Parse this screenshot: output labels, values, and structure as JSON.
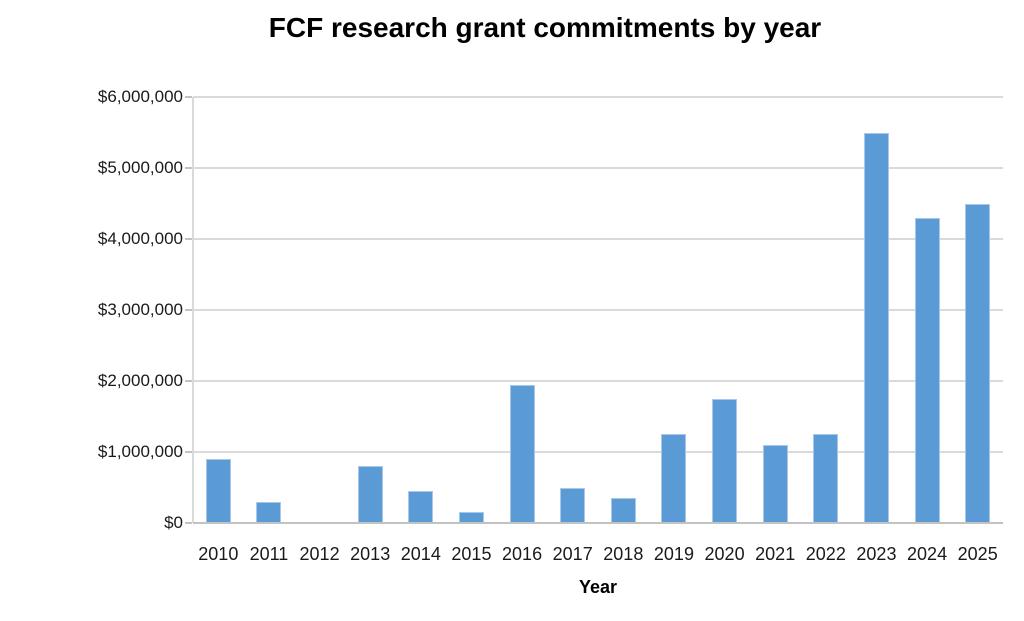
{
  "chart_data": {
    "type": "bar",
    "title": "FCF research grant commitments by year",
    "xlabel": "Year",
    "ylabel": "",
    "categories": [
      "2010",
      "2011",
      "2012",
      "2013",
      "2014",
      "2015",
      "2016",
      "2017",
      "2018",
      "2019",
      "2020",
      "2021",
      "2022",
      "2023",
      "2024",
      "2025"
    ],
    "values": [
      900000,
      300000,
      0,
      800000,
      450000,
      150000,
      1950000,
      500000,
      350000,
      1250000,
      1750000,
      1100000,
      1250000,
      5500000,
      4300000,
      4500000
    ],
    "ylim": [
      0,
      6000000
    ],
    "ytick_interval": 1000000,
    "ytick_labels": [
      "$0",
      "$1,000,000",
      "$2,000,000",
      "$3,000,000",
      "$4,000,000",
      "$5,000,000",
      "$6,000,000"
    ],
    "grid": true,
    "legend": false,
    "colors": {
      "bar_fill": "#5b9bd5",
      "bar_border": "#a9c7e8",
      "gridline": "#dadada",
      "axis_line": "#c2c2c2",
      "tick": "#c2c2c2",
      "label_text": "#1a1a1a",
      "title_text": "#000000"
    }
  }
}
